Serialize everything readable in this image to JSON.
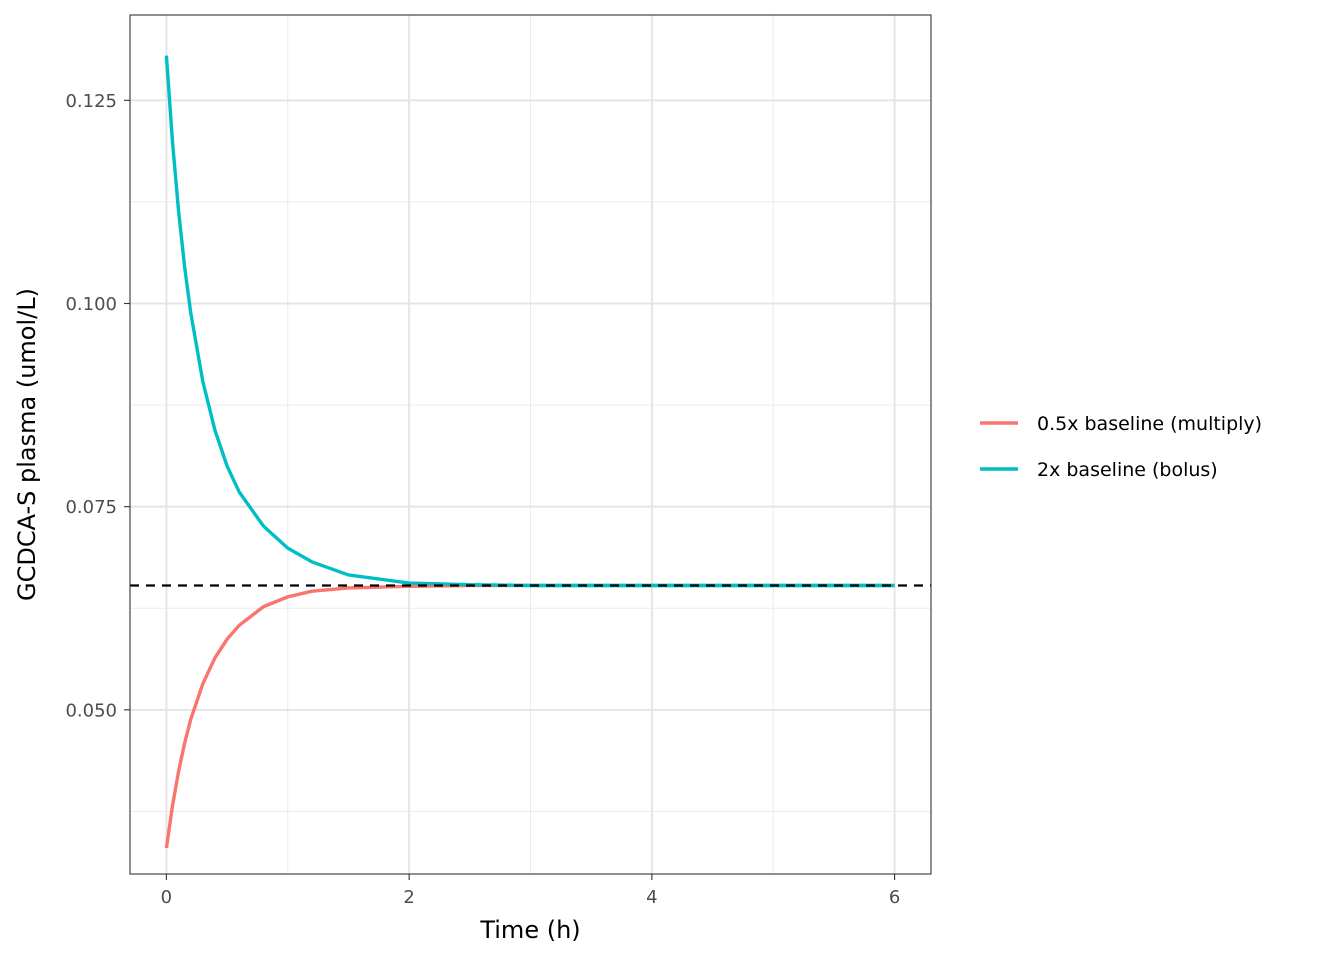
{
  "chart_data": {
    "type": "line",
    "title": "",
    "xlabel": "Time (h)",
    "ylabel": "GCDCA-S plasma (umol/L)",
    "xlim": [
      -0.3,
      6.3
    ],
    "ylim": [
      0.0298,
      0.1355
    ],
    "x_ticks": [
      0,
      2,
      4,
      6
    ],
    "x_tick_labels": [
      "0",
      "2",
      "4",
      "6"
    ],
    "y_ticks": [
      0.05,
      0.075,
      0.1,
      0.125
    ],
    "y_tick_labels": [
      "0.050",
      "0.075",
      "0.100",
      "0.125"
    ],
    "grid": true,
    "legend_position": "right",
    "reference_line": {
      "y": 0.0653,
      "style": "dashed",
      "color": "#000000"
    },
    "series": [
      {
        "name": "0.5x baseline (multiply)",
        "color": "#F8766D",
        "x": [
          0,
          0.05,
          0.1,
          0.15,
          0.2,
          0.3,
          0.4,
          0.5,
          0.6,
          0.8,
          1.0,
          1.2,
          1.5,
          2.0,
          2.5,
          3.0,
          4.0,
          5.0,
          6.0
        ],
        "y": [
          0.033,
          0.0382,
          0.0424,
          0.0459,
          0.0488,
          0.0532,
          0.0564,
          0.0587,
          0.0604,
          0.0627,
          0.0639,
          0.0646,
          0.065,
          0.0652,
          0.0653,
          0.0653,
          0.0653,
          0.0653,
          0.0653
        ]
      },
      {
        "name": "2x baseline (bolus)",
        "color": "#00BFC4",
        "x": [
          0,
          0.05,
          0.1,
          0.15,
          0.2,
          0.3,
          0.4,
          0.5,
          0.6,
          0.8,
          1.0,
          1.2,
          1.5,
          2.0,
          2.5,
          3.0,
          4.0,
          5.0,
          6.0
        ],
        "y": [
          0.1305,
          0.1199,
          0.1114,
          0.1045,
          0.0989,
          0.0904,
          0.0844,
          0.08,
          0.0768,
          0.0726,
          0.0699,
          0.0682,
          0.0666,
          0.0656,
          0.0654,
          0.0653,
          0.0653,
          0.0653,
          0.0653
        ]
      }
    ]
  }
}
